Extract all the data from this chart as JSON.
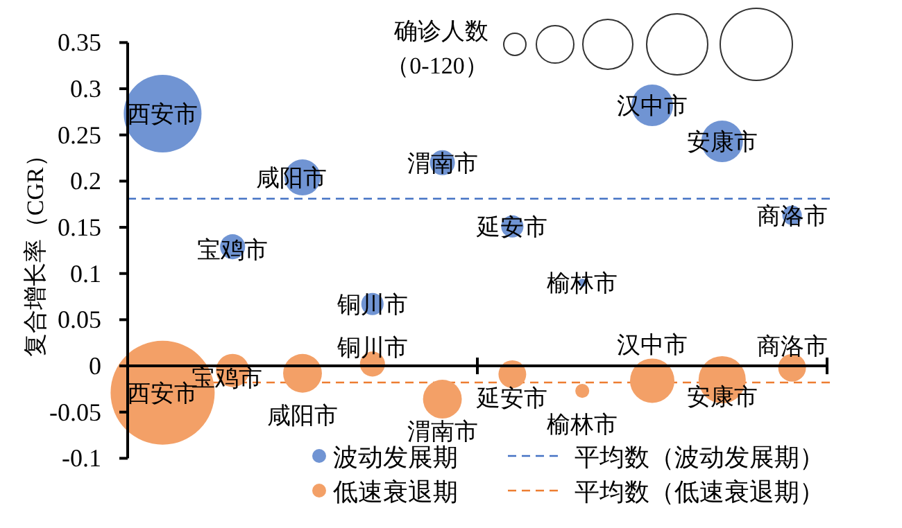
{
  "chart_data": {
    "type": "bubble",
    "ylabel": "复合增长率（CGR）",
    "categories": [
      null,
      null,
      null,
      null,
      null,
      null,
      null,
      null,
      null,
      null
    ],
    "ylim": [
      -0.1,
      0.35
    ],
    "yticks": [
      -0.1,
      -0.05,
      0,
      0.05,
      0.1,
      0.15,
      0.2,
      0.25,
      0.3,
      0.35
    ],
    "tick_labels": "y",
    "legend": "bottom",
    "series": [
      {
        "name": "波动发展期",
        "color": "#7094d3",
        "values": [
          0.273,
          0.129,
          0.204,
          0.067,
          0.22,
          0.151,
          0.09,
          0.282,
          0.243,
          0.163
        ],
        "sizes": [
          0.558,
          0.058,
          0.12,
          0.046,
          0.058,
          0.046,
          0.006,
          0.16,
          0.16,
          0.035
        ],
        "value_labels": [
          "西安市",
          "宝鸡市",
          "咸阳市",
          "铜川市",
          "渭南市",
          "延安市",
          "榆林市",
          "汉中市",
          "安康市",
          "商洛市"
        ]
      },
      {
        "name": "低速衰退期",
        "color": "#f3a067",
        "values": [
          -0.029,
          -0.005,
          -0.008,
          0.002,
          -0.036,
          -0.009,
          -0.027,
          -0.016,
          -0.015,
          -0.002
        ],
        "sizes": [
          1,
          0.102,
          0.139,
          0.058,
          0.139,
          0.071,
          0.018,
          0.182,
          0.206,
          0.071
        ],
        "value_labels": [
          "西安市",
          "宝鸡市",
          "咸阳市",
          "铜川市",
          "渭南市",
          "延安市",
          "榆林市",
          "汉中市",
          "安康市",
          "商洛市"
        ]
      }
    ],
    "ref_lines": [
      {
        "axis": "y",
        "value": 0.181,
        "label": "平均数（波动发展期）",
        "color": "#4472c4",
        "line_style": "dashed"
      },
      {
        "axis": "y",
        "value": -0.018,
        "label": "平均数（低速衰退期）",
        "color": "#ed7d31",
        "line_style": "dashed"
      }
    ],
    "annotations": [
      "确诊人数",
      "（0-120）"
    ]
  }
}
